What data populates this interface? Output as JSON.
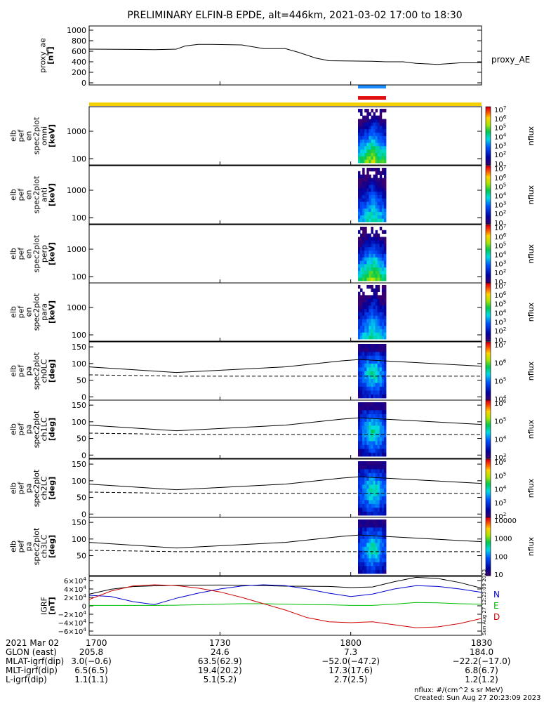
{
  "title": "PRELIMINARY ELFIN-B EPDE, alt=446km, 2021-03-02 17:00 to 18:30",
  "colors": {
    "indicator_blue": "#1a8cff",
    "indicator_red": "#e01010",
    "orbit_bar": "#f5d000",
    "grf_n": "#0000cc",
    "grf_e": "#00bb00",
    "grf_d": "#cc0000"
  },
  "chart_data": [
    {
      "type": "line",
      "panel": "proxy_ae",
      "ylabel": [
        "proxy_ae",
        "[nT]"
      ],
      "right_label": "proxy_AE",
      "ylim": [
        -40,
        1080
      ],
      "yticks": [
        "0",
        "200",
        "400",
        "600",
        "800",
        "1000"
      ],
      "ytick_values": [
        0,
        200,
        400,
        600,
        800,
        1000
      ],
      "x_minutes": [
        0,
        10,
        15,
        20,
        22,
        25,
        28,
        35,
        40,
        45,
        48,
        52,
        55,
        60,
        65,
        68,
        72,
        75,
        80,
        85,
        90
      ],
      "values": [
        640,
        635,
        630,
        640,
        700,
        730,
        730,
        720,
        650,
        650,
        580,
        470,
        420,
        415,
        410,
        400,
        400,
        370,
        350,
        380,
        380
      ]
    },
    {
      "type": "heatmap",
      "panel": "omni",
      "ylabel": [
        "elb",
        "pef",
        "en",
        "spec2plot",
        "omni",
        "[keV]"
      ],
      "yscale": "log",
      "yticks": [
        "100",
        "1000"
      ],
      "colorbar": {
        "label": "nflux",
        "ticks": [
          "10",
          "10^2",
          "10^3",
          "10^4",
          "10^5",
          "10^6",
          "10^7"
        ]
      }
    },
    {
      "type": "heatmap",
      "panel": "anti",
      "ylabel": [
        "elb",
        "pef",
        "en",
        "spec2plot",
        "anti",
        "[keV]"
      ],
      "yscale": "log",
      "yticks": [
        "100",
        "1000"
      ],
      "colorbar": {
        "label": "nflux",
        "ticks": [
          "10",
          "10^2",
          "10^3",
          "10^4",
          "10^5",
          "10^6",
          "10^7"
        ]
      }
    },
    {
      "type": "heatmap",
      "panel": "perp",
      "ylabel": [
        "elb",
        "pef",
        "en",
        "spec2plot",
        "perp",
        "[keV]"
      ],
      "yscale": "log",
      "yticks": [
        "100",
        "1000"
      ],
      "colorbar": {
        "label": "nflux",
        "ticks": [
          "10",
          "10^2",
          "10^3",
          "10^4",
          "10^5",
          "10^6",
          "10^7"
        ]
      }
    },
    {
      "type": "heatmap",
      "panel": "para",
      "ylabel": [
        "elb",
        "pef",
        "en",
        "spec2plot",
        "para",
        "[keV]"
      ],
      "yscale": "log",
      "yticks": [
        "100",
        "1000"
      ],
      "colorbar": {
        "label": "nflux",
        "ticks": [
          "10",
          "10^2",
          "10^3",
          "10^4",
          "10^5",
          "10^6",
          "10^7"
        ]
      }
    },
    {
      "type": "heatmap",
      "panel": "ch0LC",
      "ylabel": [
        "elb",
        "pef",
        "pa",
        "spec2plot",
        "ch0LC",
        "[deg]"
      ],
      "yticks": [
        "0",
        "50",
        "100",
        "150"
      ],
      "colorbar": {
        "label": "nflux",
        "ticks": [
          "10^4",
          "10^5",
          "10^6",
          "10^7"
        ]
      }
    },
    {
      "type": "heatmap",
      "panel": "ch1LC",
      "ylabel": [
        "elb",
        "pef",
        "pa",
        "spec2plot",
        "ch1LC",
        "[deg]"
      ],
      "yticks": [
        "0",
        "50",
        "100",
        "150"
      ],
      "colorbar": {
        "label": "nflux",
        "ticks": [
          "10^3",
          "10^4",
          "10^5",
          "10^6"
        ]
      }
    },
    {
      "type": "heatmap",
      "panel": "ch2LC",
      "ylabel": [
        "elb",
        "pef",
        "pa",
        "spec2plot",
        "ch2LC",
        "[deg]"
      ],
      "yticks": [
        "0",
        "50",
        "100",
        "150"
      ],
      "colorbar": {
        "label": "nflux",
        "ticks": [
          "10^2",
          "10^3",
          "10^4",
          "10^5",
          "10^6"
        ]
      }
    },
    {
      "type": "heatmap",
      "panel": "ch3LC",
      "ylabel": [
        "elb",
        "pef",
        "pa",
        "spec2plot",
        "ch3LC",
        "[deg]"
      ],
      "yticks": [
        "50",
        "100",
        "150"
      ],
      "colorbar": {
        "label": "nflux",
        "ticks": [
          "10",
          "100",
          "1000",
          "10000"
        ]
      }
    },
    {
      "type": "line",
      "panel": "IGRF",
      "ylabel": [
        "IGRF",
        "[nT]"
      ],
      "yticks": [
        "6×10^4",
        "4×10^4",
        "2×10^4",
        "0",
        "−2×10^4",
        "−4×10^4",
        "−6×10^4"
      ],
      "ytick_values": [
        60000,
        40000,
        20000,
        0,
        -20000,
        -40000,
        -60000
      ],
      "ylim": [
        -70000,
        70000
      ],
      "x_minutes": [
        0,
        5,
        10,
        15,
        20,
        25,
        30,
        35,
        40,
        45,
        50,
        55,
        60,
        65,
        70,
        75,
        80,
        85,
        90
      ],
      "series": [
        {
          "name": "N",
          "values": [
            25000,
            22000,
            10000,
            3000,
            18000,
            30000,
            40000,
            47000,
            50000,
            48000,
            40000,
            30000,
            22000,
            28000,
            40000,
            48000,
            46000,
            40000,
            32000
          ]
        },
        {
          "name": "E",
          "values": [
            1000,
            1000,
            1000,
            1000,
            1500,
            2500,
            4000,
            5000,
            5000,
            4000,
            3000,
            2500,
            1000,
            1000,
            4000,
            8000,
            7000,
            5000,
            4000
          ]
        },
        {
          "name": "D",
          "values": [
            15000,
            35000,
            47000,
            50000,
            48000,
            42000,
            33000,
            20000,
            5000,
            -10000,
            -28000,
            -38000,
            -40000,
            -38000,
            -45000,
            -52000,
            -50000,
            -42000,
            -30000
          ]
        }
      ]
    }
  ],
  "xaxis": {
    "date": "2021 Mar 02",
    "ticks": [
      "1700",
      "1730",
      "1800",
      "1830"
    ],
    "tick_minutes": [
      0,
      30,
      60,
      90
    ]
  },
  "ephemeris": [
    {
      "label": "GLON (east)",
      "values": [
        "205.8",
        "24.6",
        "7.3",
        "184.0"
      ]
    },
    {
      "label": "MLAT-igrf(dip)",
      "values": [
        "3.0(−0.6)",
        "63.5(62.9)",
        "−52.0(−47.2)",
        "−22.2(−17.0)"
      ]
    },
    {
      "label": "MLT-igrf(dip)",
      "values": [
        "6.5(6.5)",
        "19.4(20.2)",
        "17.3(17.6)",
        "6.8(6.7)"
      ]
    },
    {
      "label": "L-igrf(dip)",
      "values": [
        "1.1(1.1)",
        "5.1(5.2)",
        "2.7(2.5)",
        "1.2(1.2)"
      ]
    }
  ],
  "footer": {
    "units": "nflux: #/(cm^2 s sr MeV)",
    "created": "Created: Sun Aug 27 20:23:09 2023",
    "side_stamp": "Sun Aug 27 12:23:09 2023"
  }
}
